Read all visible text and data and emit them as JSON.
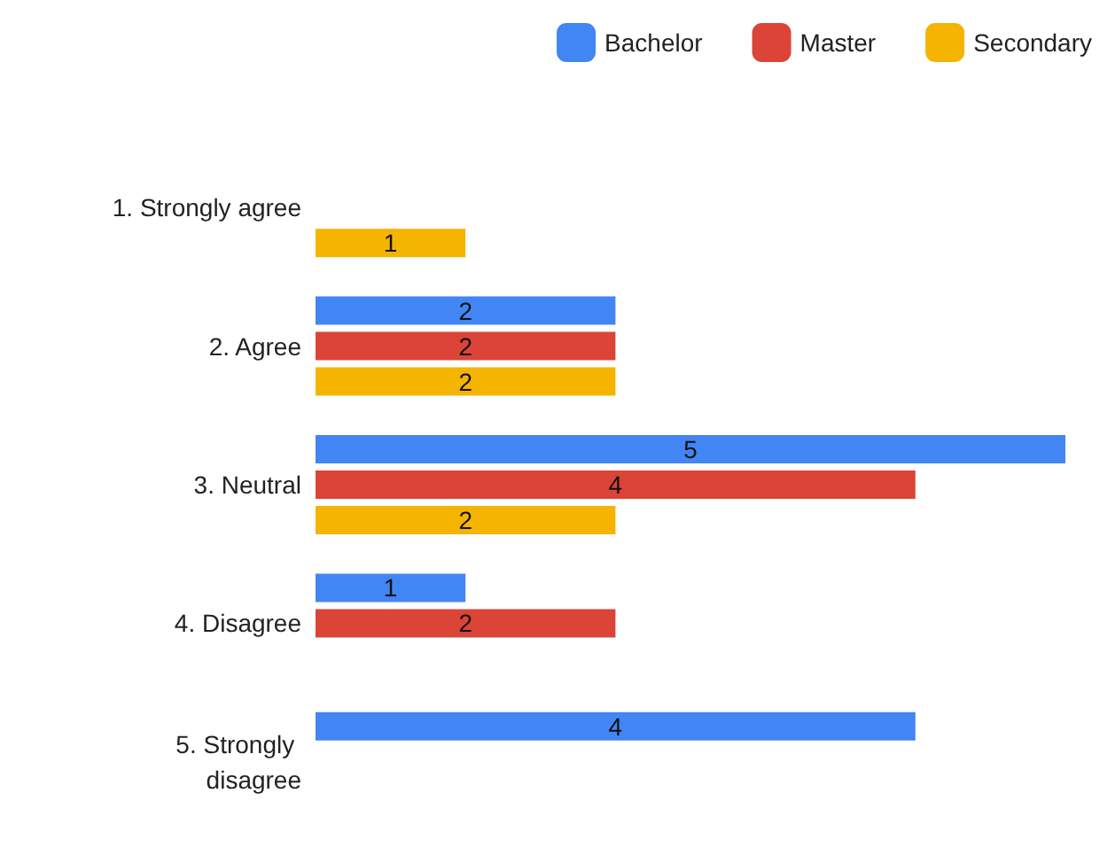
{
  "chart_data": {
    "type": "bar",
    "orientation": "horizontal",
    "categories": [
      "1. Strongly agree",
      "2. Agree",
      "3. Neutral",
      "4. Disagree",
      "5. Strongly disagree"
    ],
    "series": [
      {
        "name": "Bachelor",
        "color": "#4285f4",
        "values": [
          null,
          2,
          5,
          1,
          4
        ]
      },
      {
        "name": "Master",
        "color": "#db4437",
        "values": [
          null,
          2,
          4,
          2,
          null
        ]
      },
      {
        "name": "Secondary",
        "color": "#f4b400",
        "values": [
          1,
          2,
          2,
          null,
          null
        ]
      }
    ],
    "data_labels": true,
    "legend": "top right",
    "grid": false
  }
}
